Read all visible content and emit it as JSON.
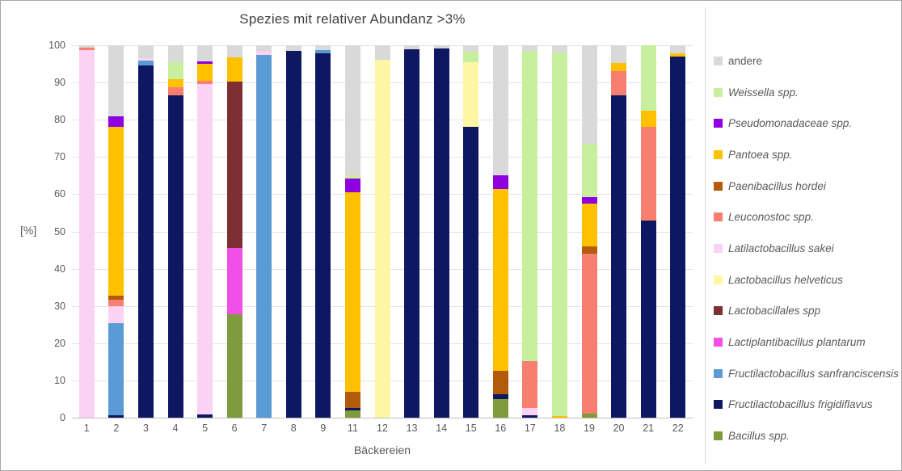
{
  "chart_data": {
    "type": "bar",
    "stacked": true,
    "title": "Spezies mit relativer Abundanz >3%",
    "xlabel": "Bäckereien",
    "ylabel": "[%]",
    "ylim": [
      0,
      100
    ],
    "ytick_step": 10,
    "grid": true,
    "legend_position": "right",
    "categories": [
      "1",
      "2",
      "3",
      "4",
      "5",
      "6",
      "7",
      "8",
      "9",
      "11",
      "12",
      "13",
      "14",
      "15",
      "16",
      "17",
      "18",
      "19",
      "20",
      "21",
      "22"
    ],
    "series": [
      {
        "name": "Bacillus spp.",
        "color": "#7E9C3C",
        "values": [
          0,
          0,
          0,
          0,
          0,
          27.8,
          0,
          0,
          0,
          2,
          0,
          0,
          0,
          0,
          5,
          0,
          0,
          1,
          0,
          0,
          0
        ]
      },
      {
        "name": "Fructilactobacillus frigidiflavus",
        "color": "#0E1862",
        "values": [
          0,
          0.7,
          94.5,
          86.5,
          0.8,
          0,
          0,
          98.4,
          97.8,
          0.7,
          0,
          99,
          99.2,
          78,
          1.2,
          0.7,
          0,
          0,
          86.5,
          53,
          96.9
        ]
      },
      {
        "name": "Fructilactobacillus sanfranciscensis",
        "color": "#5B9BD5",
        "values": [
          0,
          24.6,
          1.3,
          0,
          0,
          0,
          97.3,
          0,
          0.8,
          0,
          0,
          0,
          0,
          0,
          0,
          0,
          0,
          0,
          0,
          0,
          0
        ]
      },
      {
        "name": "Lactiplantibacillus plantarum",
        "color": "#F14FE6",
        "values": [
          0,
          0,
          0,
          0,
          0,
          17.7,
          0,
          0,
          0,
          0,
          0,
          0,
          0,
          0,
          0,
          0,
          0,
          0,
          0,
          0,
          0
        ]
      },
      {
        "name": "Lactobacillales spp",
        "color": "#7E2F33",
        "values": [
          0,
          0,
          0,
          0,
          0,
          44.7,
          0,
          0,
          0,
          0,
          0,
          0,
          0,
          0,
          0,
          0,
          0,
          0,
          0,
          0,
          0
        ]
      },
      {
        "name": "Lactobacillus helveticus",
        "color": "#FDF6A3",
        "values": [
          0,
          0,
          0,
          0,
          0,
          0,
          0,
          0,
          0,
          0,
          96,
          0,
          0,
          17.5,
          0,
          0,
          0,
          0,
          0,
          0,
          0
        ]
      },
      {
        "name": "Latilactobacillus sakei",
        "color": "#FBD2F3",
        "values": [
          98.8,
          4.7,
          0.8,
          0,
          88.8,
          0,
          1.2,
          0,
          0,
          0,
          0,
          0,
          0,
          0,
          0,
          1.8,
          0,
          0,
          0,
          0,
          0
        ]
      },
      {
        "name": "Leuconostoc spp.",
        "color": "#F87E70",
        "values": [
          0.6,
          1.6,
          0,
          2.2,
          0.8,
          0,
          0,
          0,
          0,
          0,
          0,
          0,
          0,
          0,
          0,
          12.7,
          0,
          43,
          6.5,
          25,
          0
        ]
      },
      {
        "name": "Paenibacillus hordei",
        "color": "#B35A0B",
        "values": [
          0,
          1.1,
          0,
          0,
          0,
          0,
          0,
          0,
          0,
          4.3,
          0,
          0,
          0,
          0,
          6.3,
          0,
          0,
          2,
          0,
          0,
          0
        ]
      },
      {
        "name": "Pantoea spp.",
        "color": "#FFC000",
        "values": [
          0,
          45.3,
          0,
          2.2,
          4.6,
          6.6,
          0,
          0,
          0,
          53.5,
          0,
          0,
          0,
          0,
          49,
          0,
          0.5,
          11.5,
          2.3,
          4.5,
          0.9
        ]
      },
      {
        "name": "Pseudomonadaceae spp.",
        "color": "#8F00E0",
        "values": [
          0,
          3,
          0,
          0,
          0.6,
          0,
          0,
          0,
          0,
          3.8,
          0,
          0,
          0,
          0,
          3.5,
          0,
          0,
          1.8,
          0,
          0,
          0
        ]
      },
      {
        "name": "Weissella spp.",
        "color": "#C8EF9E",
        "values": [
          0,
          0,
          0,
          4.6,
          0,
          0,
          0,
          0,
          0,
          0.7,
          0,
          0,
          0,
          2.8,
          0,
          83.3,
          97.5,
          14.2,
          0,
          17.5,
          0
        ]
      },
      {
        "name": "andere",
        "color": "#D9D9D9",
        "values": [
          0.6,
          19,
          3.4,
          4.5,
          4.4,
          3.2,
          1.5,
          1.6,
          1.4,
          35,
          4,
          1,
          0.8,
          1.7,
          35,
          1.5,
          2,
          26.5,
          4.7,
          0,
          2.2
        ]
      }
    ]
  }
}
